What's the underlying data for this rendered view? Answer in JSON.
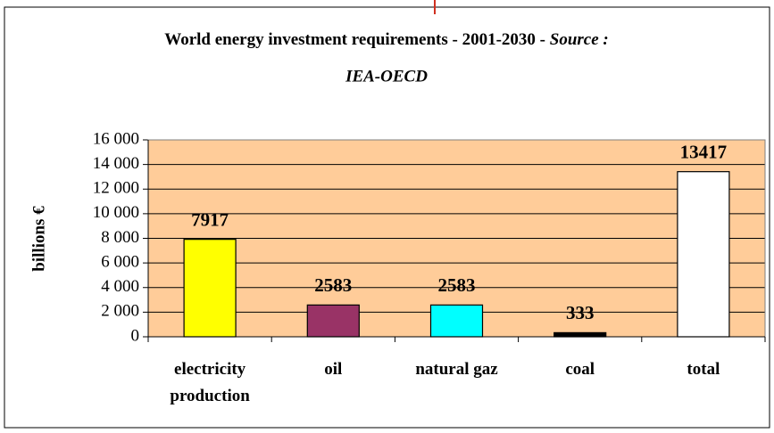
{
  "chart_data": {
    "type": "bar",
    "title": "World energy investment requirements - 2001-2030 -",
    "source": "Source : IEA-OECD",
    "y_label": "billions €",
    "categories": [
      "electricity production",
      "oil",
      "natural gaz",
      "coal",
      "total"
    ],
    "values": [
      7917,
      2583,
      2583,
      333,
      13417
    ],
    "colors": [
      "#ffff00",
      "#993366",
      "#00ffff",
      "#000000",
      "#ffffff"
    ],
    "ylim": [
      0,
      16000
    ],
    "yticks": [
      0,
      {
        "value": 2000,
        "label": "2 000"
      },
      {
        "value": 4000,
        "label": "4 000"
      },
      {
        "value": 6000,
        "label": "6 000"
      },
      {
        "value": 8000,
        "label": "8 000"
      },
      {
        "value": 10000,
        "label": "10 000"
      },
      {
        "value": 12000,
        "label": "12 000"
      },
      {
        "value": 14000,
        "label": "14 000"
      },
      {
        "value": 16000,
        "label": "16 000"
      }
    ],
    "grid": true
  }
}
